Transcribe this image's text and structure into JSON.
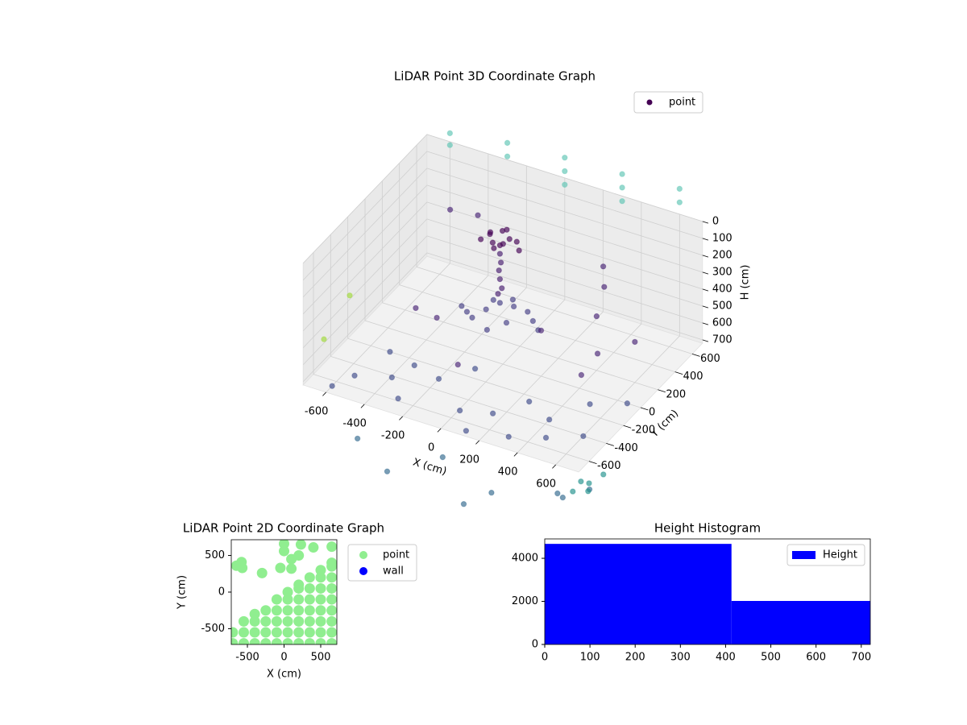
{
  "chart_data": [
    {
      "type": "scatter3d",
      "title": "LiDAR Point 3D Coordinate Graph",
      "xlabel": "X (cm)",
      "ylabel": "Y (cm)",
      "zlabel": "H (cm)",
      "xlim": [
        -720,
        720
      ],
      "ylim": [
        -720,
        720
      ],
      "zlim": [
        0,
        720
      ],
      "xticks": [
        -600,
        -400,
        -200,
        0,
        200,
        400,
        600
      ],
      "yticks": [
        -600,
        -400,
        -200,
        0,
        200,
        400,
        600
      ],
      "zticks": [
        0,
        100,
        200,
        300,
        400,
        500,
        600,
        700
      ],
      "grid": true,
      "legend": "upper right",
      "series": [
        {
          "name": "point",
          "color": "#440154",
          "x": [
            -200,
            -150,
            -100,
            -170,
            -120,
            -220,
            -80,
            -150,
            -250,
            -50,
            -150,
            -150,
            -150,
            -145,
            -155,
            -150,
            -140,
            -160,
            -150,
            -200,
            -100,
            -250,
            -50,
            -300,
            0,
            -150,
            -150,
            -220,
            -80,
            -350,
            50,
            -500,
            -400,
            300,
            350,
            -300,
            200,
            400,
            -100,
            500,
            450,
            600,
            -500,
            -550,
            -400,
            -300,
            -200,
            0,
            150,
            300,
            450,
            600,
            -500,
            -100,
            250,
            500,
            650,
            -600,
            100,
            400,
            -350,
            0,
            300,
            -400,
            600,
            700,
            650,
            200,
            -200,
            500,
            720,
            700,
            750,
            680,
            760,
            -600,
            -300,
            0,
            300,
            600,
            -300,
            0,
            300,
            600,
            0,
            300,
            -600,
            -800,
            -800
          ],
          "y": [
            300,
            330,
            300,
            260,
            270,
            340,
            340,
            300,
            300,
            300,
            380,
            230,
            300,
            300,
            300,
            300,
            300,
            300,
            300,
            250,
            350,
            200,
            400,
            250,
            350,
            150,
            450,
            380,
            220,
            300,
            300,
            500,
            600,
            500,
            400,
            -100,
            0,
            200,
            -300,
            -200,
            100,
            200,
            100,
            -500,
            -400,
            -550,
            -300,
            -500,
            -450,
            -600,
            -500,
            -400,
            -200,
            -100,
            -250,
            -100,
            0,
            -650,
            -650,
            -350,
            -250,
            -700,
            -800,
            -800,
            -700,
            -550,
            -750,
            -900,
            -900,
            -900,
            -600,
            -650,
            -500,
            -700,
            -700,
            720,
            720,
            720,
            720,
            720,
            720,
            720,
            720,
            720,
            720,
            720,
            720,
            0,
            -300
          ],
          "z": [
            170,
            160,
            175,
            200,
            195,
            210,
            205,
            230,
            230,
            225,
            180,
            210,
            280,
            330,
            380,
            430,
            480,
            520,
            570,
            600,
            600,
            640,
            640,
            650,
            650,
            650,
            630,
            620,
            620,
            660,
            660,
            250,
            300,
            300,
            350,
            500,
            450,
            400,
            600,
            500,
            550,
            480,
            620,
            720,
            730,
            740,
            720,
            730,
            720,
            725,
            730,
            720,
            720,
            730,
            720,
            725,
            720,
            720,
            735,
            720,
            720,
            900,
            950,
            880,
            900,
            920,
            880,
            1000,
            950,
            1000,
            850,
            820,
            840,
            860,
            830,
            -50,
            -100,
            -120,
            -130,
            -150,
            -20,
            -40,
            -50,
            -70,
            40,
            30,
            20,
            600,
            700
          ],
          "colors": [
            "#440154",
            "#440154",
            "#440154",
            "#440154",
            "#440154",
            "#440154",
            "#440154",
            "#440154",
            "#440154",
            "#440154",
            "#440154",
            "#440154",
            "#471c6e",
            "#471c6e",
            "#471c6e",
            "#471c6e",
            "#471c6e",
            "#471c6e",
            "#433d84",
            "#433d84",
            "#433d84",
            "#433d84",
            "#433d84",
            "#433d84",
            "#433d84",
            "#433d84",
            "#433d84",
            "#433d84",
            "#433d84",
            "#433d84",
            "#433d84",
            "#482475",
            "#482475",
            "#482475",
            "#482475",
            "#482475",
            "#482475",
            "#482475",
            "#482475",
            "#482475",
            "#482475",
            "#482475",
            "#482475",
            "#3e4a89",
            "#3e4a89",
            "#3e4a89",
            "#3e4a89",
            "#3e4a89",
            "#3e4a89",
            "#3e4a89",
            "#3e4a89",
            "#3e4a89",
            "#3e4a89",
            "#3e4a89",
            "#3e4a89",
            "#3e4a89",
            "#3e4a89",
            "#3e4a89",
            "#3e4a89",
            "#3e4a89",
            "#3e4a89",
            "#31688e",
            "#31688e",
            "#31688e",
            "#31688e",
            "#31688e",
            "#31688e",
            "#31688e",
            "#31688e",
            "#31688e",
            "#21918c",
            "#21918c",
            "#21918c",
            "#21918c",
            "#21918c",
            "#5ec5b4",
            "#5ec5b4",
            "#5ec5b4",
            "#5ec5b4",
            "#5ec5b4",
            "#5ec5b4",
            "#5ec5b4",
            "#5ec5b4",
            "#5ec5b4",
            "#5ec5b4",
            "#5ec5b4",
            "#5ec5b4",
            "#a0da39",
            "#a0da39"
          ]
        }
      ]
    },
    {
      "type": "scatter",
      "title": "LiDAR Point 2D Coordinate Graph",
      "xlabel": "X (cm)",
      "ylabel": "Y (cm)",
      "xlim": [
        -720,
        720
      ],
      "ylim": [
        -715,
        715
      ],
      "xticks": [
        -500,
        0,
        500
      ],
      "yticks": [
        -500,
        0,
        500
      ],
      "legend": "outside right",
      "series": [
        {
          "name": "point",
          "color": "#90ee90",
          "x": [
            -700,
            -700,
            -550,
            -550,
            -550,
            -400,
            -400,
            -400,
            -400,
            -250,
            -250,
            -250,
            -250,
            -100,
            -100,
            -100,
            -100,
            -100,
            50,
            50,
            50,
            50,
            50,
            50,
            200,
            200,
            200,
            200,
            200,
            200,
            200,
            350,
            350,
            350,
            350,
            350,
            350,
            350,
            500,
            500,
            500,
            500,
            500,
            500,
            500,
            500,
            650,
            650,
            650,
            650,
            650,
            650,
            650,
            650,
            650,
            -650,
            -580,
            -570,
            -300,
            0,
            0,
            100,
            200,
            230,
            400,
            650,
            -50,
            100
          ],
          "y": [
            -700,
            -550,
            -700,
            -550,
            -400,
            -700,
            -550,
            -400,
            -300,
            -700,
            -550,
            -400,
            -250,
            -700,
            -550,
            -400,
            -250,
            -100,
            -700,
            -550,
            -400,
            -250,
            -100,
            0,
            -700,
            -550,
            -400,
            -250,
            -100,
            50,
            100,
            -700,
            -550,
            -400,
            -250,
            -100,
            50,
            200,
            -700,
            -550,
            -400,
            -250,
            -100,
            50,
            200,
            300,
            -700,
            -550,
            -400,
            -250,
            -100,
            50,
            200,
            350,
            400,
            360,
            410,
            330,
            260,
            660,
            560,
            450,
            500,
            650,
            610,
            620,
            330,
            320
          ]
        },
        {
          "name": "wall",
          "color": "#0000ff",
          "x": [],
          "y": []
        }
      ]
    },
    {
      "type": "histogram",
      "title": "Height Histogram",
      "xlim": [
        0,
        720
      ],
      "ylim": [
        0,
        4900
      ],
      "xticks": [
        0,
        100,
        200,
        300,
        400,
        500,
        600,
        700
      ],
      "yticks": [
        0,
        2000,
        4000
      ],
      "legend": "upper right",
      "bins": [
        0,
        413,
        720
      ],
      "series": [
        {
          "name": "Height",
          "color": "#0000ff",
          "values": [
            4670,
            2020
          ]
        }
      ]
    }
  ]
}
